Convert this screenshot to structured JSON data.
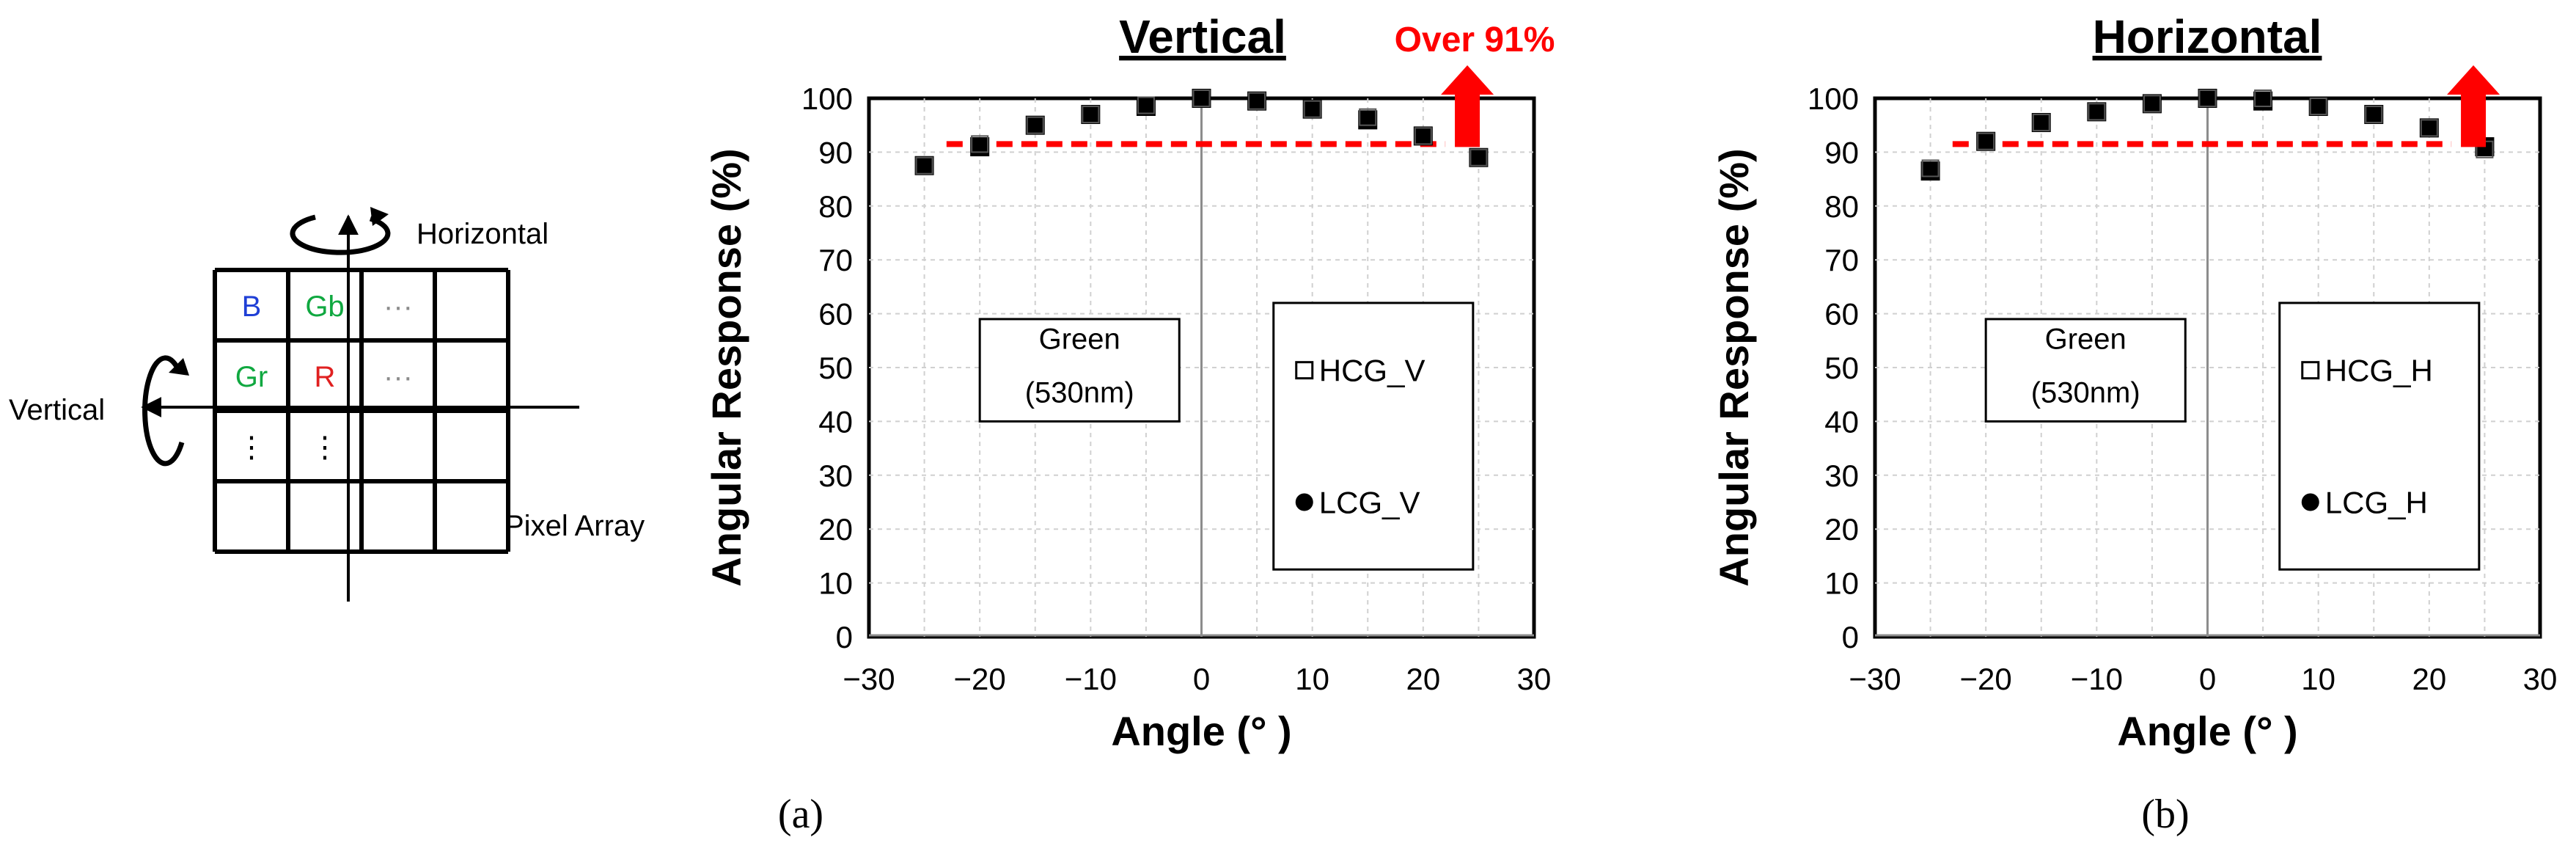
{
  "figure_a": {
    "pixel_array": {
      "cells": [
        [
          "B",
          "Gb",
          "···",
          ""
        ],
        [
          "Gr",
          "R",
          "···",
          ""
        ],
        [
          "⋮",
          "⋮",
          "",
          ""
        ],
        [
          "",
          "",
          "",
          ""
        ]
      ],
      "cell_colors": [
        [
          "#1f3fd6",
          "#10a840",
          "#8a8a8a",
          ""
        ],
        [
          "#10a840",
          "#e02020",
          "#8a8a8a",
          ""
        ],
        [
          "#000000",
          "#000000",
          "",
          ""
        ],
        [
          "",
          "",
          "",
          ""
        ]
      ],
      "label_horizontal": "Horizontal",
      "label_vertical": "Vertical",
      "label_array": "Pixel Array"
    },
    "caption": "(a)"
  },
  "figure_b": {
    "caption": "(b)"
  },
  "chart_data": [
    {
      "type": "scatter",
      "title": "Vertical",
      "xlabel": "Angle (° )",
      "ylabel": "Angular Response (%)",
      "xlim": [
        -30,
        30
      ],
      "ylim": [
        0,
        100
      ],
      "x_ticks": [
        "−30",
        "−20",
        "−10",
        "0",
        "10",
        "20",
        "30"
      ],
      "y_ticks": [
        "0",
        "10",
        "20",
        "30",
        "40",
        "50",
        "60",
        "70",
        "80",
        "90",
        "100"
      ],
      "grid": true,
      "legend_position": "right",
      "annotation_box": [
        "Green",
        "(530nm)"
      ],
      "threshold": {
        "value": 91.5,
        "x_from": -23,
        "x_to": 22,
        "label": "Over 91%",
        "color": "#ff0000"
      },
      "series": [
        {
          "name": "HCG_V",
          "marker": "open-square",
          "x": [
            -25,
            -20,
            -15,
            -10,
            -5,
            0,
            5,
            10,
            15,
            20,
            25
          ],
          "values": [
            87.5,
            91.5,
            95.0,
            97.0,
            98.7,
            100.0,
            99.5,
            98.0,
            96.5,
            93.0,
            89.0
          ]
        },
        {
          "name": "LCG_V",
          "marker": "filled-circle",
          "x": [
            -25,
            -20,
            -15,
            -10,
            -5,
            0,
            5,
            10,
            15,
            20,
            25
          ],
          "values": [
            87.5,
            91.0,
            95.0,
            97.0,
            98.5,
            100.0,
            99.5,
            98.0,
            96.0,
            93.0,
            89.0
          ]
        }
      ]
    },
    {
      "type": "scatter",
      "title": "Horizontal",
      "xlabel": "Angle (° )",
      "ylabel": "Angular Response (%)",
      "xlim": [
        -30,
        30
      ],
      "ylim": [
        0,
        100
      ],
      "x_ticks": [
        "−30",
        "−20",
        "−10",
        "0",
        "10",
        "20",
        "30"
      ],
      "y_ticks": [
        "0",
        "10",
        "20",
        "30",
        "40",
        "50",
        "60",
        "70",
        "80",
        "90",
        "100"
      ],
      "grid": true,
      "legend_position": "right",
      "annotation_box": [
        "Green",
        "(530nm)"
      ],
      "threshold": {
        "value": 91.5,
        "x_from": -23,
        "x_to": 22,
        "label": "",
        "color": "#ff0000"
      },
      "series": [
        {
          "name": "HCG_H",
          "marker": "open-square",
          "x": [
            -25,
            -20,
            -15,
            -10,
            -5,
            0,
            5,
            10,
            15,
            20,
            25
          ],
          "values": [
            87.0,
            92.0,
            95.5,
            97.5,
            99.0,
            100.0,
            100.0,
            98.5,
            97.0,
            94.5,
            90.5
          ]
        },
        {
          "name": "LCG_H",
          "marker": "filled-circle",
          "x": [
            -25,
            -20,
            -15,
            -10,
            -5,
            0,
            5,
            10,
            15,
            20,
            25
          ],
          "values": [
            86.5,
            92.0,
            95.5,
            97.5,
            99.0,
            100.0,
            99.5,
            98.5,
            97.0,
            94.5,
            91.0
          ]
        }
      ]
    }
  ]
}
